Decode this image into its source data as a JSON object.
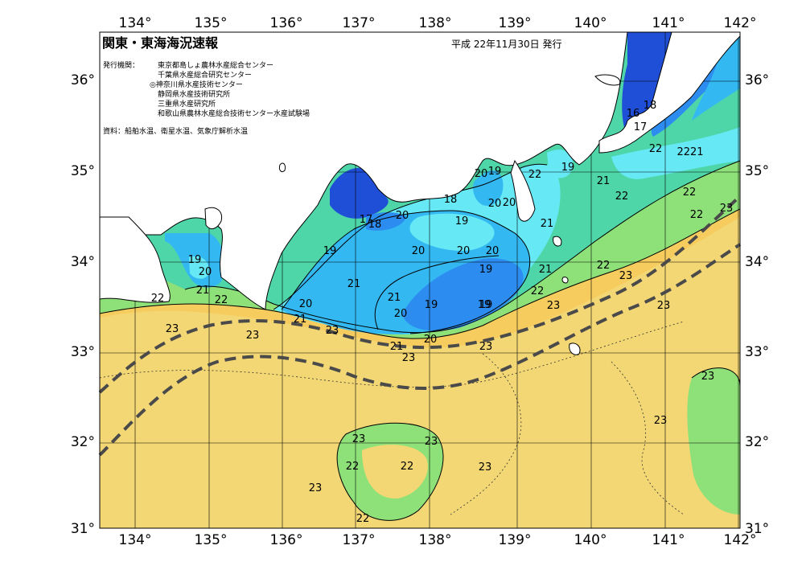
{
  "header": {
    "title": "関東・東海海況速報",
    "date": "平成 22年11月30日 発行"
  },
  "info": {
    "issuer_label": "発行機関：",
    "issuers": [
      "東京都島しょ農林水産総合センター",
      "千葉県水産総合研究センター",
      "◎神奈川県水産技術センター",
      "静岡県水産技術研究所",
      "三重県水産研究所",
      "和歌山県農林水産総合技術センター水産試験場"
    ],
    "source": "資料：船舶水温、衛星水温、気象庁解析水温"
  },
  "axes": {
    "lon_labels": [
      "134°",
      "135°",
      "136°",
      "137°",
      "138°",
      "139°",
      "140°",
      "141°",
      "142°"
    ],
    "lat_labels": [
      "36°",
      "35°",
      "34°",
      "33°",
      "32°",
      "31°"
    ]
  },
  "colors": {
    "t17": "#1f4fd6",
    "t18": "#2c8cf0",
    "t19": "#34b8f2",
    "t20": "#66e8f5",
    "t21": "#4ed6a8",
    "t22": "#8ee078",
    "t23": "#f3d774",
    "t24": "#f7cc5e",
    "land": "#ffffff",
    "kuroshio": "#4a4a4a"
  },
  "isotherm_labels": [
    {
      "text": "16"
    },
    {
      "text": "18"
    },
    {
      "text": "17"
    },
    {
      "text": "22"
    },
    {
      "text": "2221"
    },
    {
      "text": "21"
    },
    {
      "text": "22"
    },
    {
      "text": "22"
    },
    {
      "text": "22"
    },
    {
      "text": "23"
    },
    {
      "text": "20"
    },
    {
      "text": "19"
    },
    {
      "text": "22"
    },
    {
      "text": "19"
    },
    {
      "text": "18"
    },
    {
      "text": "19"
    },
    {
      "text": "20"
    },
    {
      "text": "17"
    },
    {
      "text": "18"
    },
    {
      "text": "20"
    },
    {
      "text": "21"
    },
    {
      "text": "20"
    },
    {
      "text": "20"
    },
    {
      "text": "20"
    },
    {
      "text": "19"
    },
    {
      "text": "19"
    },
    {
      "text": "20"
    },
    {
      "text": "19"
    },
    {
      "text": "21"
    },
    {
      "text": "21"
    },
    {
      "text": "22"
    },
    {
      "text": "22"
    },
    {
      "text": "23"
    },
    {
      "text": "23"
    },
    {
      "text": "21"
    },
    {
      "text": "20"
    },
    {
      "text": "19"
    },
    {
      "text": "19"
    },
    {
      "text": "20"
    },
    {
      "text": "21"
    },
    {
      "text": "23"
    },
    {
      "text": "23"
    },
    {
      "text": "23"
    },
    {
      "text": "20"
    },
    {
      "text": "21"
    },
    {
      "text": "22"
    },
    {
      "text": "22"
    },
    {
      "text": "21"
    },
    {
      "text": "23"
    },
    {
      "text": "23"
    },
    {
      "text": "23"
    },
    {
      "text": "23"
    },
    {
      "text": "23"
    },
    {
      "text": "23"
    },
    {
      "text": "22"
    },
    {
      "text": "22"
    },
    {
      "text": "23"
    },
    {
      "text": "23"
    },
    {
      "text": "23"
    },
    {
      "text": "22"
    },
    {
      "text": "19"
    },
    {
      "text": "20"
    }
  ]
}
